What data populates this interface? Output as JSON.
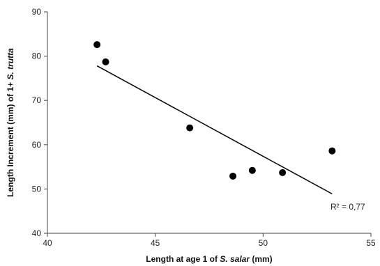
{
  "chart_data": {
    "type": "scatter",
    "title": "",
    "xlabel": {
      "prefix": "Length at age 1 of ",
      "italic": "S. salar",
      "suffix": " (mm)"
    },
    "ylabel": {
      "prefix": "Length Increment (mm) of 1+ ",
      "italic": "S. trutta",
      "suffix": ""
    },
    "xlim": [
      40,
      55
    ],
    "ylim": [
      40,
      90
    ],
    "xticks": [
      40,
      45,
      50,
      55
    ],
    "yticks": [
      40,
      50,
      60,
      70,
      80,
      90
    ],
    "grid": false,
    "legend": "none",
    "points": [
      {
        "x": 42.3,
        "y": 82.6
      },
      {
        "x": 42.7,
        "y": 78.7
      },
      {
        "x": 46.6,
        "y": 63.8
      },
      {
        "x": 48.6,
        "y": 52.9
      },
      {
        "x": 49.5,
        "y": 54.2
      },
      {
        "x": 50.9,
        "y": 53.7
      },
      {
        "x": 53.2,
        "y": 58.6
      }
    ],
    "trendline": {
      "x": [
        42.3,
        53.2
      ],
      "y": [
        77.8,
        48.9
      ]
    },
    "annotation": "R² = 0,77",
    "colors": {
      "marker": "#000000",
      "line": "#000000",
      "axis": "#444444"
    }
  }
}
